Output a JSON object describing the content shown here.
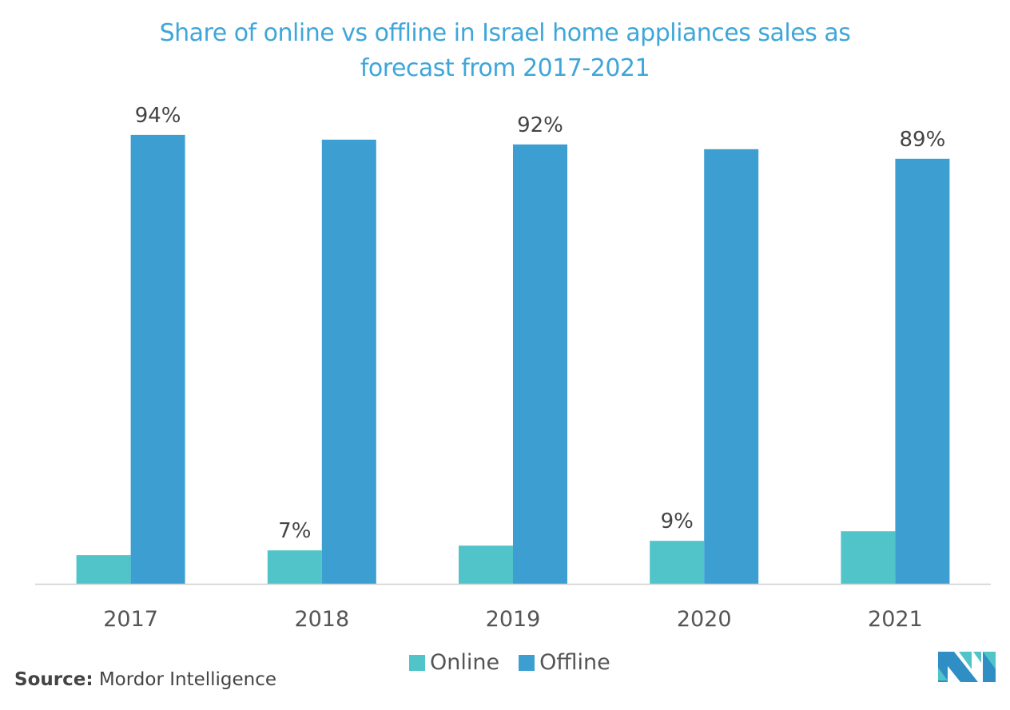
{
  "chart_data": {
    "type": "bar",
    "title": "Share of online vs offline in Israel home appliances sales as forecast from 2017-2021",
    "title_lines": [
      "Share of online vs offline in Israel home appliances sales as",
      "forecast from 2017-2021"
    ],
    "categories": [
      "2017",
      "2018",
      "2019",
      "2020",
      "2021"
    ],
    "series": [
      {
        "name": "Online",
        "color": "#50c4c8",
        "values": [
          6,
          7,
          8,
          9,
          11
        ],
        "labels": [
          "",
          "7%",
          "",
          "9%",
          ""
        ]
      },
      {
        "name": "Offline",
        "color": "#3d9fd1",
        "values": [
          94,
          93,
          92,
          91,
          89
        ],
        "labels": [
          "94%",
          "",
          "92%",
          "",
          "89%"
        ]
      }
    ],
    "ylim": [
      0,
      100
    ],
    "grid": false,
    "y_axis_visible": false,
    "legend": "bottom",
    "xlabel": "",
    "ylabel": ""
  },
  "source": {
    "label": "Source:",
    "text": "Mordor Intelligence"
  },
  "logo": {
    "colors": [
      "#2f8fc4",
      "#50c4c8"
    ]
  }
}
